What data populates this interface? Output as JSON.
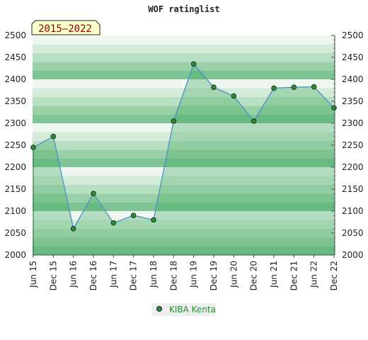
{
  "chart_data": {
    "type": "area",
    "title": "WOF ratinglist",
    "badge": "2015–2022",
    "categories": [
      "Jun 15",
      "Dec 15",
      "Jun 16",
      "Dec 16",
      "Jun 17",
      "Dec 17",
      "Jun 18",
      "Dec 18",
      "Jun 19",
      "Dec 19",
      "Jun 20",
      "Dec 20",
      "Jun 21",
      "Dec 21",
      "Jun 22",
      "Dec 22"
    ],
    "series": [
      {
        "name": "KIBA Kenta",
        "values": [
          2245,
          2270,
          2060,
          2140,
          2073,
          2090,
          2080,
          2305,
          2435,
          2382,
          2362,
          2305,
          2380,
          2382,
          2383,
          2335
        ]
      }
    ],
    "ylim": [
      2000,
      2500
    ],
    "yticks": [
      "2000",
      "2050",
      "2100",
      "2150",
      "2200",
      "2250",
      "2300",
      "2350",
      "2400",
      "2450",
      "2500"
    ],
    "grid": true,
    "legend_position": "bottom"
  },
  "colors": {
    "line": "#4a90c8",
    "area": "#3aa55a",
    "marker": "#2e8b3a",
    "badge_bg": "#ffffcc",
    "badge_text": "#8b0000",
    "legend_text": "#2e8b3a",
    "legend_bg": "#eeeeee"
  }
}
